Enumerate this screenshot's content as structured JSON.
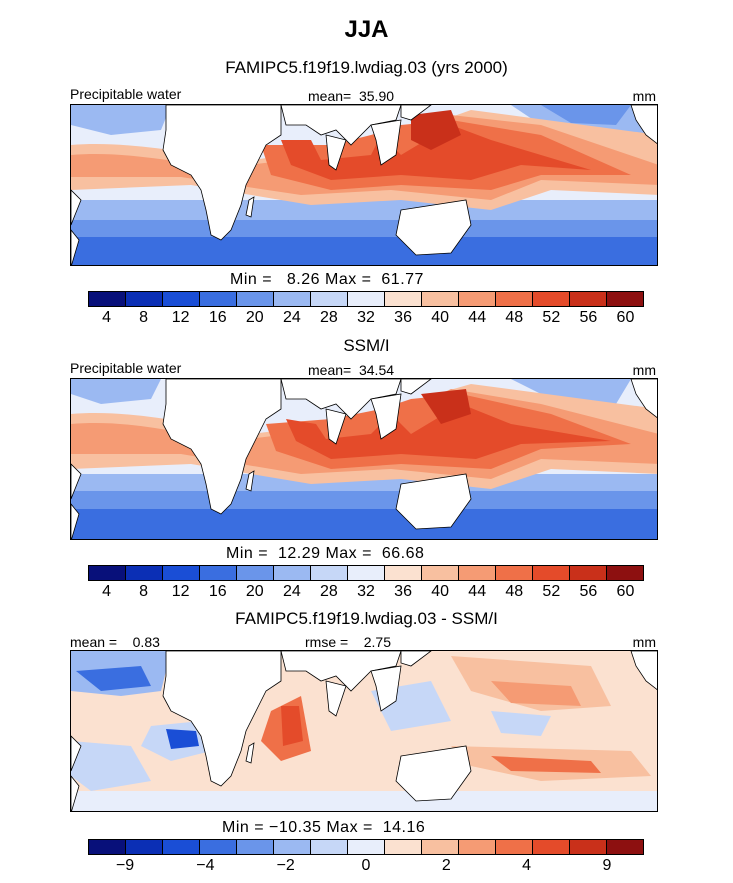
{
  "page": {
    "title": "JJA"
  },
  "panels": [
    {
      "subtitle": "FAMIPC5.f19f19.lwdiag.03 (yrs 2000)",
      "header_left": "Precipitable water",
      "header_mid": "mean=  35.90",
      "header_right": "mm",
      "minmax": "Min =   8.26 Max =  61.77",
      "colorbar_colors": [
        "#08107a",
        "#0b2fb5",
        "#1a4ed6",
        "#3a6ee0",
        "#6a95ea",
        "#9bb9f2",
        "#c6d7f7",
        "#e8eefb",
        "#fbe1d0",
        "#f8c0a0",
        "#f59b74",
        "#ef7048",
        "#e44b2a",
        "#c9301a",
        "#8d1010"
      ],
      "colorbar_ticks": [
        "4",
        "8",
        "12",
        "16",
        "20",
        "24",
        "28",
        "32",
        "36",
        "40",
        "44",
        "48",
        "52",
        "56",
        "60"
      ]
    },
    {
      "subtitle": "SSM/I",
      "header_left": "Precipitable water",
      "header_mid": "mean=  34.54",
      "header_right": "mm",
      "minmax": "Min =  12.29 Max =  66.68",
      "colorbar_colors": [
        "#08107a",
        "#0b2fb5",
        "#1a4ed6",
        "#3a6ee0",
        "#6a95ea",
        "#9bb9f2",
        "#c6d7f7",
        "#e8eefb",
        "#fbe1d0",
        "#f8c0a0",
        "#f59b74",
        "#ef7048",
        "#e44b2a",
        "#c9301a",
        "#8d1010"
      ],
      "colorbar_ticks": [
        "4",
        "8",
        "12",
        "16",
        "20",
        "24",
        "28",
        "32",
        "36",
        "40",
        "44",
        "48",
        "52",
        "56",
        "60"
      ]
    },
    {
      "subtitle": "FAMIPC5.f19f19.lwdiag.03 - SSM/I",
      "header_left": "mean =    0.83",
      "header_mid": "rmse =    2.75",
      "header_right": "mm",
      "minmax": "Min = −10.35 Max =  14.16",
      "colorbar_colors": [
        "#08107a",
        "#0b2fb5",
        "#1a4ed6",
        "#3a6ee0",
        "#6a95ea",
        "#9bb9f2",
        "#c6d7f7",
        "#e8eefb",
        "#fbe1d0",
        "#f8c0a0",
        "#f59b74",
        "#ef7048",
        "#e44b2a",
        "#c9301a",
        "#8d1010"
      ],
      "colorbar_ticks": [
        "−9",
        "−4",
        "−2",
        "0",
        "2",
        "4",
        "9"
      ]
    }
  ],
  "chart_data": [
    {
      "type": "heatmap",
      "title": "FAMIPC5.f19f19.lwdiag.03 (yrs 2000)",
      "variable": "Precipitable water",
      "units": "mm",
      "mean": 35.9,
      "min": 8.26,
      "max": 61.77,
      "levels": [
        4,
        8,
        12,
        16,
        20,
        24,
        28,
        32,
        36,
        40,
        44,
        48,
        52,
        56,
        60
      ]
    },
    {
      "type": "heatmap",
      "title": "SSM/I",
      "variable": "Precipitable water",
      "units": "mm",
      "mean": 34.54,
      "min": 12.29,
      "max": 66.68,
      "levels": [
        4,
        8,
        12,
        16,
        20,
        24,
        28,
        32,
        36,
        40,
        44,
        48,
        52,
        56,
        60
      ]
    },
    {
      "type": "heatmap",
      "title": "FAMIPC5.f19f19.lwdiag.03 - SSM/I",
      "units": "mm",
      "mean": 0.83,
      "rmse": 2.75,
      "min": -10.35,
      "max": 14.16,
      "levels": [
        -9,
        -4,
        -2,
        0,
        2,
        4,
        9
      ]
    }
  ]
}
